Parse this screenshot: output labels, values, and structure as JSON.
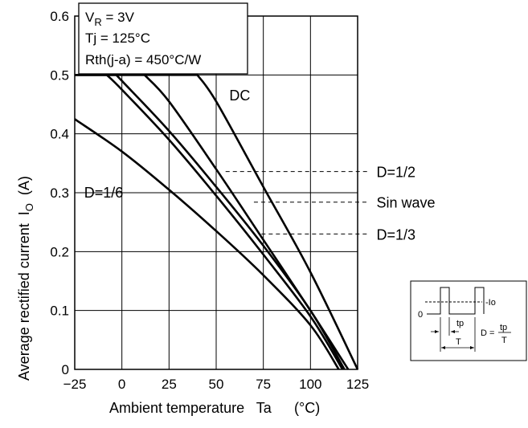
{
  "chart_data": {
    "type": "line",
    "x_axis": {
      "label": "Ambient temperature   Ta",
      "unit": "(°C)",
      "range": [
        -25,
        125
      ],
      "ticks": [
        -25,
        0,
        25,
        50,
        75,
        100,
        125
      ],
      "tick_labels": [
        "−25",
        "0",
        "25",
        "50",
        "75",
        "100",
        "125"
      ]
    },
    "y_axis": {
      "label": "Average rectified current",
      "symbol": "I",
      "subscript": "O",
      "unit": "(A)",
      "range": [
        0,
        0.6
      ],
      "ticks": [
        0,
        0.1,
        0.2,
        0.3,
        0.4,
        0.5,
        0.6
      ],
      "tick_labels": [
        "0",
        "0.1",
        "0.2",
        "0.3",
        "0.4",
        "0.5",
        "0.6"
      ]
    },
    "grid": true,
    "conditions": {
      "vr_prefix": "V",
      "vr_sub": "R",
      "vr_value": " = 3V",
      "tj": "Tj = 125°C",
      "rth": "Rth(j-a) = 450°C/W"
    },
    "series": [
      {
        "name": "DC",
        "label_at_x": 57,
        "label_at_y": 0.465,
        "x": [
          -25,
          40,
          50,
          75,
          100,
          125
        ],
        "y": [
          0.5,
          0.5,
          0.455,
          0.31,
          0.165,
          0
        ]
      },
      {
        "name": "D=1/2",
        "callout_from": [
          55,
          0.336
        ],
        "x": [
          -25,
          12,
          25,
          50,
          75,
          100,
          120
        ],
        "y": [
          0.5,
          0.5,
          0.455,
          0.34,
          0.22,
          0.1,
          0
        ]
      },
      {
        "name": "Sin wave",
        "callout_from": [
          70,
          0.284
        ],
        "x": [
          -25,
          -3,
          0,
          25,
          50,
          75,
          100,
          118
        ],
        "y": [
          0.5,
          0.5,
          0.49,
          0.405,
          0.31,
          0.21,
          0.1,
          0
        ]
      },
      {
        "name": "D=1/3",
        "callout_from": [
          74,
          0.23
        ],
        "x": [
          -25,
          -8,
          0,
          25,
          50,
          75,
          100,
          117
        ],
        "y": [
          0.5,
          0.5,
          0.475,
          0.39,
          0.295,
          0.195,
          0.09,
          0
        ]
      },
      {
        "name": "D=1/6",
        "label_at_x": -20,
        "label_at_y": 0.3,
        "x": [
          -25,
          0,
          25,
          50,
          75,
          100,
          115
        ],
        "y": [
          0.425,
          0.37,
          0.305,
          0.235,
          0.16,
          0.075,
          0
        ]
      }
    ],
    "callout_label_x": 135,
    "inset": {
      "zero_label": "0",
      "io_label": "-Io",
      "tp_label": "tp",
      "t_label": "T",
      "d_label": "D =",
      "frac_num": "tp",
      "frac_den": "T"
    }
  }
}
